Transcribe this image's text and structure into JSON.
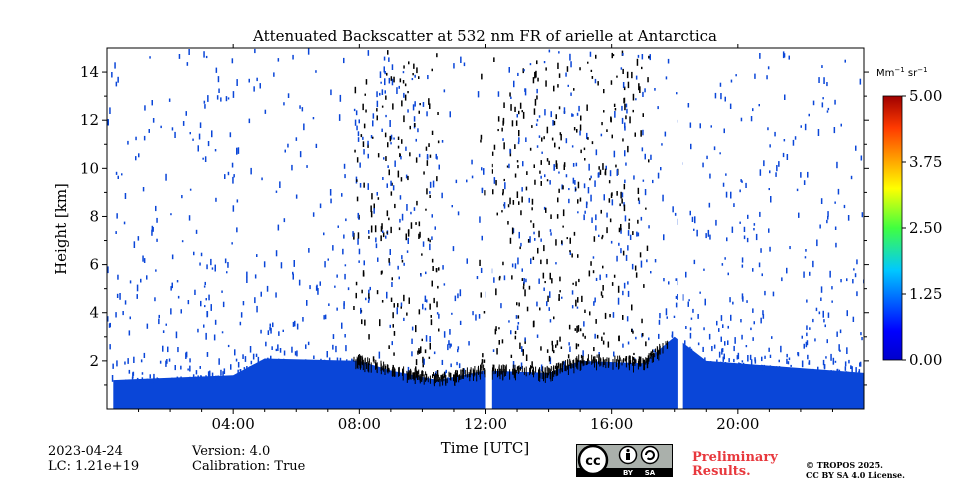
{
  "chart_data": {
    "type": "heatmap",
    "title": "Attenuated Backscatter at 532 nm FR of arielle at Antarctica",
    "xlabel": "Time [UTC]",
    "ylabel": "Height [km]",
    "xlim": [
      0,
      24
    ],
    "ylim": [
      0,
      15
    ],
    "x_ticks": [
      4,
      8,
      12,
      16,
      20
    ],
    "x_tick_labels": [
      "04:00",
      "08:00",
      "12:00",
      "16:00",
      "20:00"
    ],
    "y_ticks": [
      2,
      4,
      6,
      8,
      10,
      12,
      14
    ],
    "y_tick_labels": [
      "2",
      "4",
      "6",
      "8",
      "10",
      "12",
      "14"
    ],
    "colorbar": {
      "unit_base": "Mm",
      "unit_exp1": "−1",
      "unit_mid": " sr",
      "unit_exp2": "−1",
      "range": [
        0.0,
        5.0
      ],
      "ticks": [
        0.0,
        1.25,
        2.5,
        3.75,
        5.0
      ],
      "tick_labels": [
        "0.00",
        "1.25",
        "2.50",
        "3.75",
        "5.00"
      ],
      "colormap": "jet"
    },
    "boundary_layer_top_km": [
      {
        "t": 0.2,
        "h": 1.2
      },
      {
        "t": 2.0,
        "h": 1.3
      },
      {
        "t": 4.0,
        "h": 1.4
      },
      {
        "t": 5.0,
        "h": 2.1
      },
      {
        "t": 8.0,
        "h": 2.0
      },
      {
        "t": 9.0,
        "h": 1.6
      },
      {
        "t": 10.5,
        "h": 1.2
      },
      {
        "t": 12.0,
        "h": 1.6
      },
      {
        "t": 14.0,
        "h": 1.5
      },
      {
        "t": 15.0,
        "h": 2.0
      },
      {
        "t": 17.0,
        "h": 1.9
      },
      {
        "t": 18.0,
        "h": 3.0
      },
      {
        "t": 19.0,
        "h": 2.0
      },
      {
        "t": 24.0,
        "h": 1.5
      }
    ],
    "data_gaps_utc": [
      [
        12.0,
        12.2
      ],
      [
        18.1,
        18.25
      ]
    ],
    "noise_bands_utc": [
      [
        7.8,
        10.5
      ],
      [
        11.8,
        17.2
      ]
    ]
  },
  "footer": {
    "date": "2023-04-24",
    "lc": "LC: 1.21e+19",
    "version": "Version: 4.0",
    "calibration": "Calibration: True",
    "preliminary_line1": "Preliminary",
    "preliminary_line2": "Results.",
    "copyright_line1": "© TROPOS 2025.",
    "copyright_line2": "CC BY SA 4.0 License.",
    "license_badge": {
      "icon": "cc-by-sa-icon",
      "by": "BY",
      "sa": "SA"
    }
  },
  "colors": {
    "low": "#0a46d8",
    "noise": "#000000",
    "bg": "#ffffff"
  }
}
